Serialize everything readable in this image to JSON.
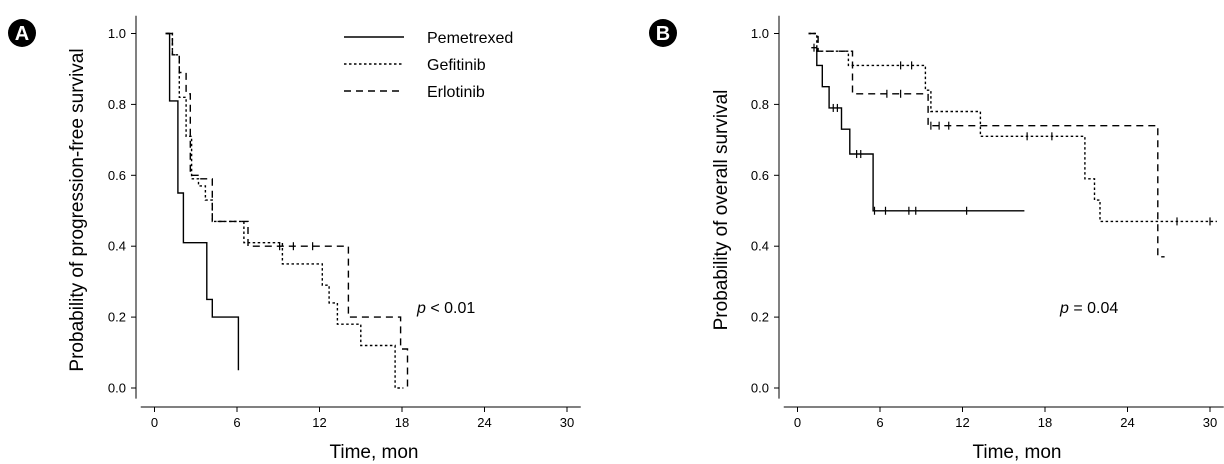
{
  "legend": {
    "entries": [
      {
        "label": "Pemetrexed",
        "dash": "solid"
      },
      {
        "label": "Gefitinib",
        "dash": "dotted"
      },
      {
        "label": "Erlotinib",
        "dash": "dashed"
      }
    ]
  },
  "chart_data": [
    {
      "type": "line",
      "step": true,
      "panel_label": "A",
      "xlabel": "Time, mon",
      "ylabel": "Probability of progression-free survival",
      "xlim": [
        -1,
        31
      ],
      "ylim": [
        -0.03,
        1.05
      ],
      "x_ticks": [
        0,
        6,
        12,
        18,
        24,
        30
      ],
      "y_ticks": [
        0.0,
        0.2,
        0.4,
        0.6,
        0.8,
        1.0
      ],
      "grid": false,
      "legend_position": "top-center",
      "annotation": {
        "italic": "p",
        "rest": " < 0.01",
        "x": 19.0,
        "y": 0.22
      },
      "series": [
        {
          "name": "Pemetrexed",
          "dash": "solid",
          "x": [
            0.8,
            1.1,
            1.7,
            2.1,
            3.8,
            4.2,
            6.1
          ],
          "y": [
            1.0,
            0.81,
            0.55,
            0.41,
            0.25,
            0.2,
            0.05
          ],
          "censored": []
        },
        {
          "name": "Gefitinib",
          "dash": "dotted",
          "x": [
            0.9,
            1.3,
            1.8,
            2.3,
            2.7,
            3.2,
            3.7,
            4.2,
            5.0,
            6.5,
            9.3,
            12.2,
            12.7,
            13.3,
            15.0,
            17.5,
            18.1
          ],
          "y": [
            1.0,
            0.94,
            0.82,
            0.71,
            0.59,
            0.57,
            0.53,
            0.47,
            0.47,
            0.41,
            0.35,
            0.29,
            0.24,
            0.18,
            0.12,
            0.0,
            0.0
          ],
          "censored": []
        },
        {
          "name": "Erlotinib",
          "dash": "dashed",
          "x": [
            0.8,
            1.3,
            1.8,
            2.3,
            2.6,
            3.3,
            4.2,
            6.0,
            6.8,
            9.1,
            10.1,
            11.5,
            14.1,
            17.9,
            18.4
          ],
          "y": [
            1.0,
            0.94,
            0.89,
            0.83,
            0.6,
            0.59,
            0.47,
            0.47,
            0.4,
            0.4,
            0.4,
            0.4,
            0.2,
            0.11,
            0.0
          ],
          "censored": [
            {
              "x": 9.1,
              "y": 0.4
            },
            {
              "x": 10.1,
              "y": 0.4
            },
            {
              "x": 11.5,
              "y": 0.4
            }
          ]
        }
      ]
    },
    {
      "type": "line",
      "step": true,
      "panel_label": "B",
      "xlabel": "Time, mon",
      "ylabel": "Probability of overall survival",
      "xlim": [
        -1,
        31
      ],
      "ylim": [
        -0.03,
        1.05
      ],
      "x_ticks": [
        0,
        6,
        12,
        18,
        24,
        30
      ],
      "y_ticks": [
        0.0,
        0.2,
        0.4,
        0.6,
        0.8,
        1.0
      ],
      "grid": false,
      "annotation": {
        "italic": "p",
        "rest": " = 0.04",
        "x": 19.0,
        "y": 0.22
      },
      "series": [
        {
          "name": "Pemetrexed",
          "dash": "solid",
          "x": [
            1.0,
            1.4,
            1.8,
            2.3,
            3.2,
            3.8,
            5.5,
            16.5
          ],
          "y": [
            0.96,
            0.91,
            0.85,
            0.79,
            0.73,
            0.66,
            0.5,
            0.5
          ],
          "censored": [
            {
              "x": 1.2,
              "y": 0.96
            },
            {
              "x": 2.6,
              "y": 0.79
            },
            {
              "x": 2.9,
              "y": 0.79
            },
            {
              "x": 4.3,
              "y": 0.66
            },
            {
              "x": 4.6,
              "y": 0.66
            },
            {
              "x": 5.6,
              "y": 0.5
            },
            {
              "x": 6.4,
              "y": 0.5
            },
            {
              "x": 8.1,
              "y": 0.5
            },
            {
              "x": 8.6,
              "y": 0.5
            },
            {
              "x": 12.3,
              "y": 0.5
            }
          ]
        },
        {
          "name": "Gefitinib",
          "dash": "dotted",
          "x": [
            0.8,
            1.4,
            2.0,
            3.7,
            9.3,
            9.7,
            13.3,
            20.9,
            21.6,
            22.0,
            30.5
          ],
          "y": [
            1.0,
            0.95,
            0.95,
            0.91,
            0.84,
            0.78,
            0.71,
            0.59,
            0.53,
            0.47,
            0.47
          ],
          "censored": [
            {
              "x": 7.5,
              "y": 0.91
            },
            {
              "x": 8.3,
              "y": 0.91
            },
            {
              "x": 16.7,
              "y": 0.71
            },
            {
              "x": 18.5,
              "y": 0.71
            },
            {
              "x": 27.6,
              "y": 0.47
            },
            {
              "x": 30.0,
              "y": 0.47
            }
          ]
        },
        {
          "name": "Erlotinib",
          "dash": "dashed",
          "x": [
            0.8,
            1.5,
            4.0,
            9.5,
            26.2,
            26.7
          ],
          "y": [
            1.0,
            0.95,
            0.83,
            0.74,
            0.37,
            0.37
          ],
          "censored": [
            {
              "x": 6.5,
              "y": 0.83
            },
            {
              "x": 7.5,
              "y": 0.83
            },
            {
              "x": 9.7,
              "y": 0.74
            },
            {
              "x": 10.3,
              "y": 0.74
            },
            {
              "x": 11.0,
              "y": 0.74
            }
          ]
        }
      ]
    }
  ]
}
